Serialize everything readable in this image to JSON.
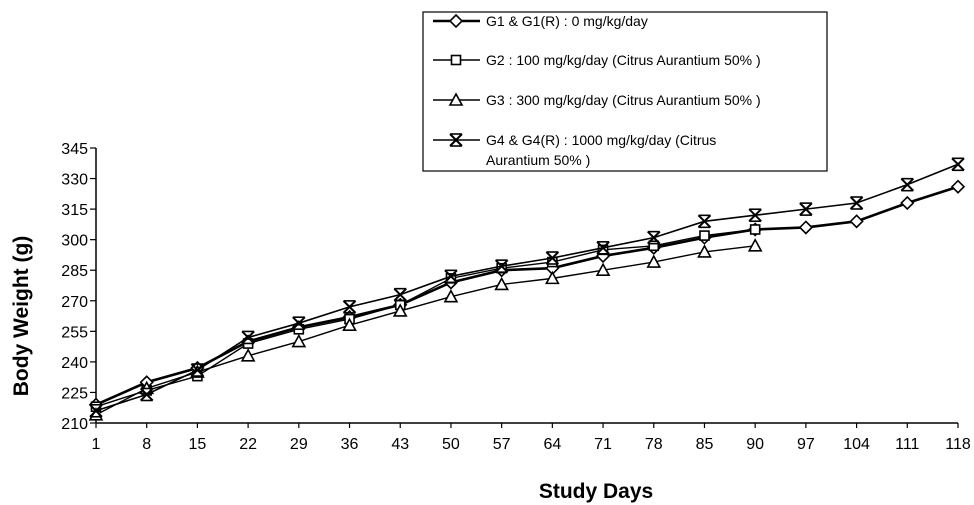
{
  "chart_data": {
    "type": "line",
    "title": "",
    "xlabel": "Study Days",
    "ylabel": "Body Weight (g)",
    "categories": [
      "1",
      "8",
      "15",
      "22",
      "29",
      "36",
      "43",
      "50",
      "57",
      "64",
      "71",
      "78",
      "85",
      "90",
      "97",
      "104",
      "111",
      "118"
    ],
    "ylim": [
      210,
      345
    ],
    "yticks": [
      "210",
      "225",
      "240",
      "255",
      "270",
      "285",
      "300",
      "315",
      "330",
      "345"
    ],
    "grid": false,
    "legend_position": "top-right",
    "series": [
      {
        "name": "G1 & G1(R) : 0 mg/kg/day",
        "marker": "diamond",
        "values": [
          219,
          230,
          237,
          250,
          257,
          262,
          268,
          279,
          285,
          286,
          292,
          296,
          301,
          305,
          306,
          309,
          318,
          326
        ]
      },
      {
        "name": "G2 : 100 mg/kg/day (Citrus Aurantium 50% )",
        "marker": "square",
        "values": [
          218,
          226,
          233,
          249,
          256,
          261,
          268,
          281,
          286,
          289,
          295,
          297,
          302,
          305,
          null,
          null,
          null,
          null
        ]
      },
      {
        "name": "G3 : 300 mg/kg/day (Citrus Aurantium 50% )",
        "marker": "triangle",
        "values": [
          214,
          227,
          235,
          243,
          250,
          258,
          265,
          272,
          278,
          281,
          285,
          289,
          294,
          297,
          null,
          null,
          null,
          null
        ]
      },
      {
        "name": "G4 & G4(R) : 1000 mg/kg/day (Citrus Aurantium 50% )",
        "marker": "asterisk",
        "values": [
          216,
          224,
          236,
          252,
          259,
          267,
          273,
          282,
          287,
          291,
          296,
          301,
          309,
          312,
          315,
          318,
          327,
          337
        ]
      }
    ]
  }
}
